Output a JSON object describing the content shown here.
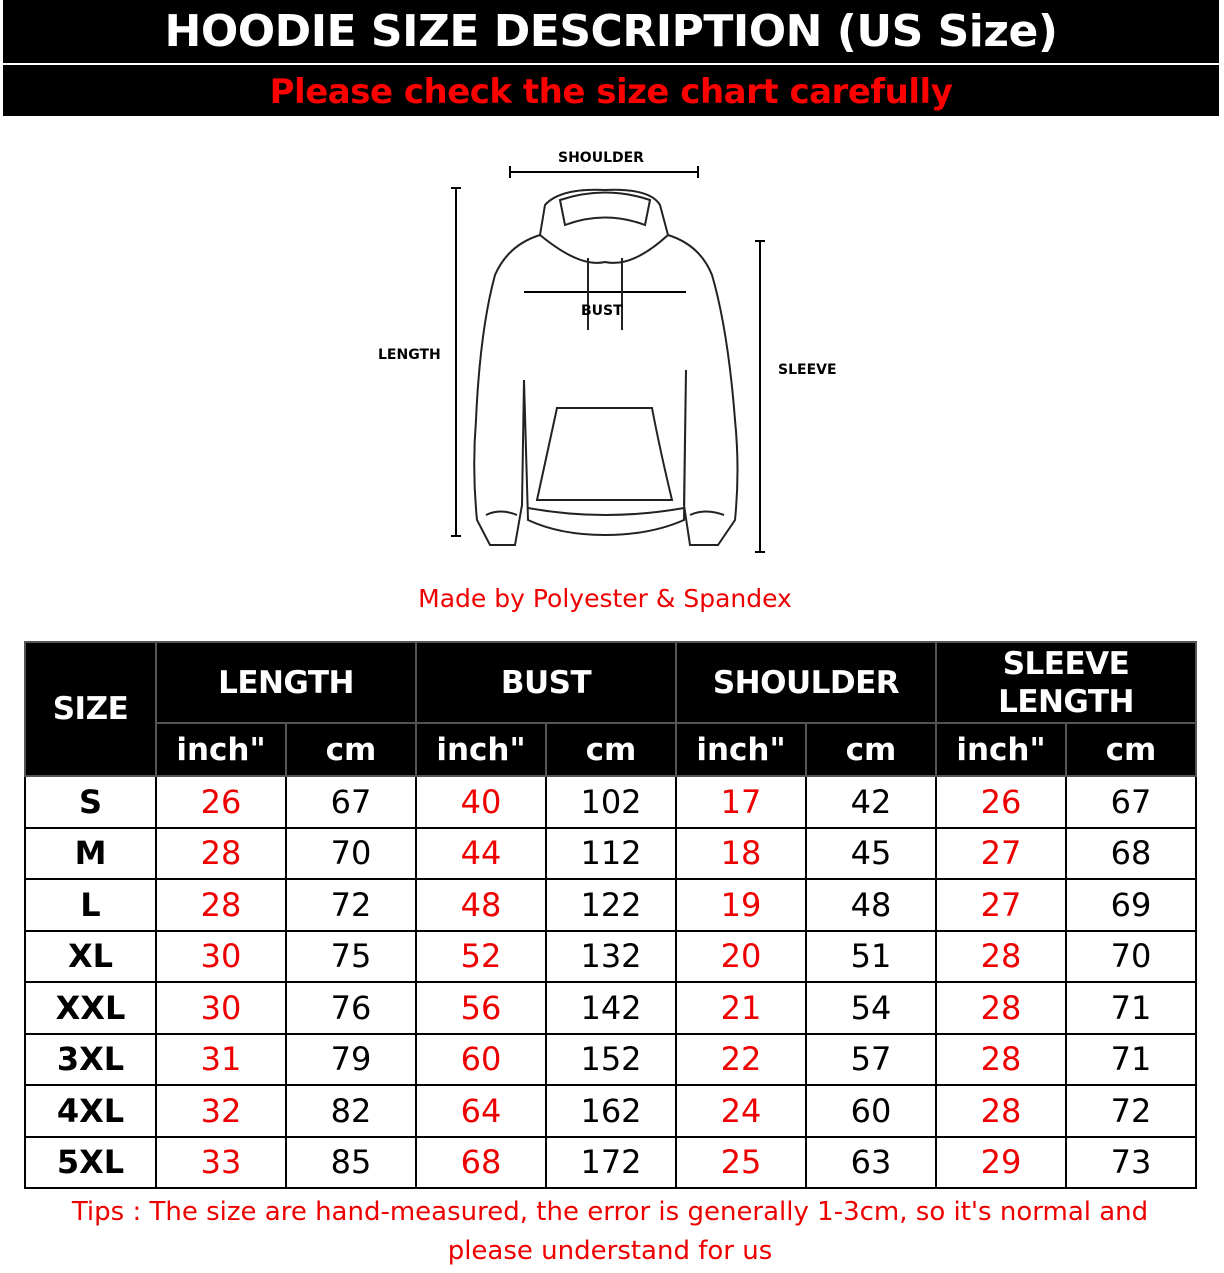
{
  "header": {
    "title": "HOODIE SIZE DESCRIPTION (US Size)",
    "subtitle": "Please check the size chart carefully"
  },
  "diagram": {
    "shoulder": "SHOULDER",
    "bust": "BUST",
    "length": "LENGTH",
    "sleeve": "SLEEVE"
  },
  "material": "Made by Polyester & Spandex",
  "table": {
    "size_header": "SIZE",
    "groups": [
      "LENGTH",
      "BUST",
      "SHOULDER",
      "SLEEVE LENGTH"
    ],
    "units": [
      "inch\"",
      "cm"
    ],
    "rows": [
      {
        "size": "S",
        "values": [
          "26",
          "67",
          "40",
          "102",
          "17",
          "42",
          "26",
          "67"
        ]
      },
      {
        "size": "M",
        "values": [
          "28",
          "70",
          "44",
          "112",
          "18",
          "45",
          "27",
          "68"
        ]
      },
      {
        "size": "L",
        "values": [
          "28",
          "72",
          "48",
          "122",
          "19",
          "48",
          "27",
          "69"
        ]
      },
      {
        "size": "XL",
        "values": [
          "30",
          "75",
          "52",
          "132",
          "20",
          "51",
          "28",
          "70"
        ]
      },
      {
        "size": "XXL",
        "values": [
          "30",
          "76",
          "56",
          "142",
          "21",
          "54",
          "28",
          "71"
        ]
      },
      {
        "size": "3XL",
        "values": [
          "31",
          "79",
          "60",
          "152",
          "22",
          "57",
          "28",
          "71"
        ]
      },
      {
        "size": "4XL",
        "values": [
          "32",
          "82",
          "64",
          "162",
          "24",
          "60",
          "28",
          "72"
        ]
      },
      {
        "size": "5XL",
        "values": [
          "33",
          "85",
          "68",
          "172",
          "25",
          "63",
          "29",
          "73"
        ]
      }
    ]
  },
  "tips": "Tips : The size are hand-measured, the error is generally 1-3cm, so it's normal and please understand for us",
  "colors": {
    "accent_red": "#ee0000",
    "header_bg": "#000000"
  }
}
